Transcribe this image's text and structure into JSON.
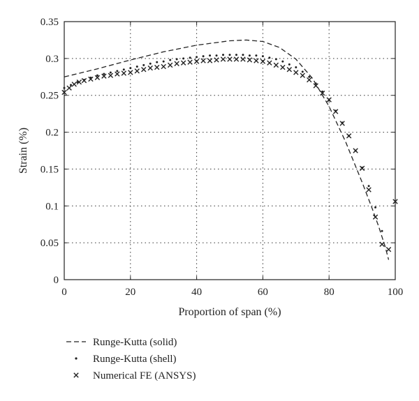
{
  "chart_data": {
    "type": "line",
    "title": "",
    "xlabel": "Proportion of span (%)",
    "ylabel": "Strain (%)",
    "xlim": [
      0,
      100
    ],
    "ylim": [
      0,
      0.35
    ],
    "xticks": [
      0,
      20,
      40,
      60,
      80,
      100
    ],
    "yticks": [
      0,
      0.05,
      0.1,
      0.15,
      0.2,
      0.25,
      0.3,
      0.35
    ],
    "xtick_labels": [
      "0",
      "20",
      "40",
      "60",
      "80",
      "100"
    ],
    "ytick_labels": [
      "0",
      "0.05",
      "0.1",
      "0.15",
      "0.2",
      "0.25",
      "0.3",
      "0.35"
    ],
    "grid": true,
    "legend_position": "bottom-left, below plot",
    "series": [
      {
        "name": "Runge-Kutta (solid)",
        "style": "dashed-line",
        "color": "#222222",
        "x": [
          0,
          10,
          20,
          30,
          40,
          50,
          55,
          60,
          65,
          70,
          75,
          80,
          85,
          90,
          93,
          95,
          97,
          98
        ],
        "y": [
          0.275,
          0.286,
          0.298,
          0.309,
          0.318,
          0.324,
          0.325,
          0.323,
          0.315,
          0.299,
          0.273,
          0.235,
          0.187,
          0.132,
          0.097,
          0.072,
          0.044,
          0.027
        ]
      },
      {
        "name": "Runge-Kutta (shell)",
        "style": "dot-markers",
        "color": "#222222",
        "x": [
          0,
          2,
          4,
          6,
          8,
          10,
          12,
          14,
          16,
          18,
          20,
          22,
          24,
          26,
          28,
          30,
          32,
          34,
          36,
          38,
          40,
          42,
          44,
          46,
          48,
          50,
          52,
          54,
          56,
          58,
          60,
          62,
          64,
          66,
          68,
          70,
          72,
          74,
          76,
          78,
          80,
          82,
          84,
          86,
          88,
          90,
          92,
          94,
          96
        ],
        "y": [
          0.26,
          0.264,
          0.268,
          0.271,
          0.274,
          0.277,
          0.279,
          0.281,
          0.283,
          0.285,
          0.287,
          0.289,
          0.291,
          0.293,
          0.295,
          0.296,
          0.298,
          0.299,
          0.3,
          0.301,
          0.302,
          0.303,
          0.304,
          0.304,
          0.305,
          0.305,
          0.305,
          0.305,
          0.304,
          0.304,
          0.303,
          0.301,
          0.299,
          0.296,
          0.292,
          0.288,
          0.282,
          0.275,
          0.266,
          0.255,
          0.243,
          0.229,
          0.213,
          0.195,
          0.175,
          0.152,
          0.127,
          0.098,
          0.066
        ]
      },
      {
        "name": "Numerical FE (ANSYS)",
        "style": "x-markers",
        "color": "#222222",
        "x": [
          0,
          1.5,
          3,
          4.5,
          6,
          8,
          10,
          12,
          14,
          16,
          18,
          20,
          22,
          24,
          26,
          28,
          30,
          32,
          34,
          36,
          38,
          40,
          42,
          44,
          46,
          48,
          50,
          52,
          54,
          56,
          58,
          60,
          62,
          64,
          66,
          68,
          70,
          72,
          74,
          76,
          78,
          80,
          82,
          84,
          86,
          88,
          90,
          92,
          94,
          96,
          98,
          100
        ],
        "y": [
          0.254,
          0.26,
          0.265,
          0.268,
          0.27,
          0.272,
          0.274,
          0.276,
          0.277,
          0.279,
          0.28,
          0.281,
          0.283,
          0.285,
          0.287,
          0.288,
          0.289,
          0.291,
          0.293,
          0.294,
          0.295,
          0.296,
          0.297,
          0.297,
          0.298,
          0.299,
          0.299,
          0.299,
          0.299,
          0.298,
          0.297,
          0.296,
          0.294,
          0.291,
          0.288,
          0.285,
          0.281,
          0.277,
          0.271,
          0.263,
          0.253,
          0.244,
          0.228,
          0.212,
          0.195,
          0.175,
          0.151,
          0.122,
          0.085,
          0.048,
          0.041,
          0.106
        ]
      }
    ]
  }
}
